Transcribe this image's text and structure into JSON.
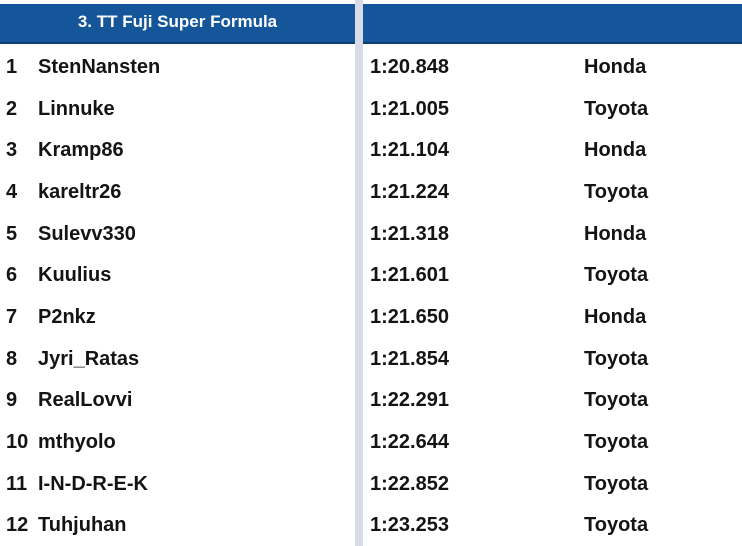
{
  "header": {
    "title": "3. TT Fuji Super Formula"
  },
  "colors": {
    "header_blue": "#15569B",
    "header_blue_dark": "#0E3E6E",
    "divider_gray": "#D9DBE6",
    "text": "#141414"
  },
  "table": {
    "rows": [
      {
        "pos": "1",
        "name": "StenNansten",
        "time": "1:20.848",
        "car": "Honda"
      },
      {
        "pos": "2",
        "name": "Linnuke",
        "time": "1:21.005",
        "car": "Toyota"
      },
      {
        "pos": "3",
        "name": "Kramp86",
        "time": "1:21.104",
        "car": "Honda"
      },
      {
        "pos": "4",
        "name": "kareltr26",
        "time": "1:21.224",
        "car": "Toyota"
      },
      {
        "pos": "5",
        "name": "Sulevv330",
        "time": "1:21.318",
        "car": "Honda"
      },
      {
        "pos": "6",
        "name": "Kuulius",
        "time": "1:21.601",
        "car": "Toyota"
      },
      {
        "pos": "7",
        "name": "P2nkz",
        "time": "1:21.650",
        "car": "Honda"
      },
      {
        "pos": "8",
        "name": "Jyri_Ratas",
        "time": "1:21.854",
        "car": "Toyota"
      },
      {
        "pos": "9",
        "name": "RealLovvi",
        "time": "1:22.291",
        "car": "Toyota"
      },
      {
        "pos": "10",
        "name": "mthyolo",
        "time": "1:22.644",
        "car": "Toyota"
      },
      {
        "pos": "11",
        "name": "I-N-D-R-E-K",
        "time": "1:22.852",
        "car": "Toyota"
      },
      {
        "pos": "12",
        "name": "Tuhjuhan",
        "time": "1:23.253",
        "car": "Toyota"
      }
    ]
  },
  "chart_data": {
    "type": "table",
    "title": "3. TT Fuji Super Formula",
    "rows": [
      [
        "1",
        "StenNansten",
        "1:20.848",
        "Honda"
      ],
      [
        "2",
        "Linnuke",
        "1:21.005",
        "Toyota"
      ],
      [
        "3",
        "Kramp86",
        "1:21.104",
        "Honda"
      ],
      [
        "4",
        "kareltr26",
        "1:21.224",
        "Toyota"
      ],
      [
        "5",
        "Sulevv330",
        "1:21.318",
        "Honda"
      ],
      [
        "6",
        "Kuulius",
        "1:21.601",
        "Toyota"
      ],
      [
        "7",
        "P2nkz",
        "1:21.650",
        "Honda"
      ],
      [
        "8",
        "Jyri_Ratas",
        "1:21.854",
        "Toyota"
      ],
      [
        "9",
        "RealLovvi",
        "1:22.291",
        "Toyota"
      ],
      [
        "10",
        "mthyolo",
        "1:22.644",
        "Toyota"
      ],
      [
        "11",
        "I-N-D-R-E-K",
        "1:22.852",
        "Toyota"
      ],
      [
        "12",
        "Tuhjuhan",
        "1:23.253",
        "Toyota"
      ]
    ]
  }
}
